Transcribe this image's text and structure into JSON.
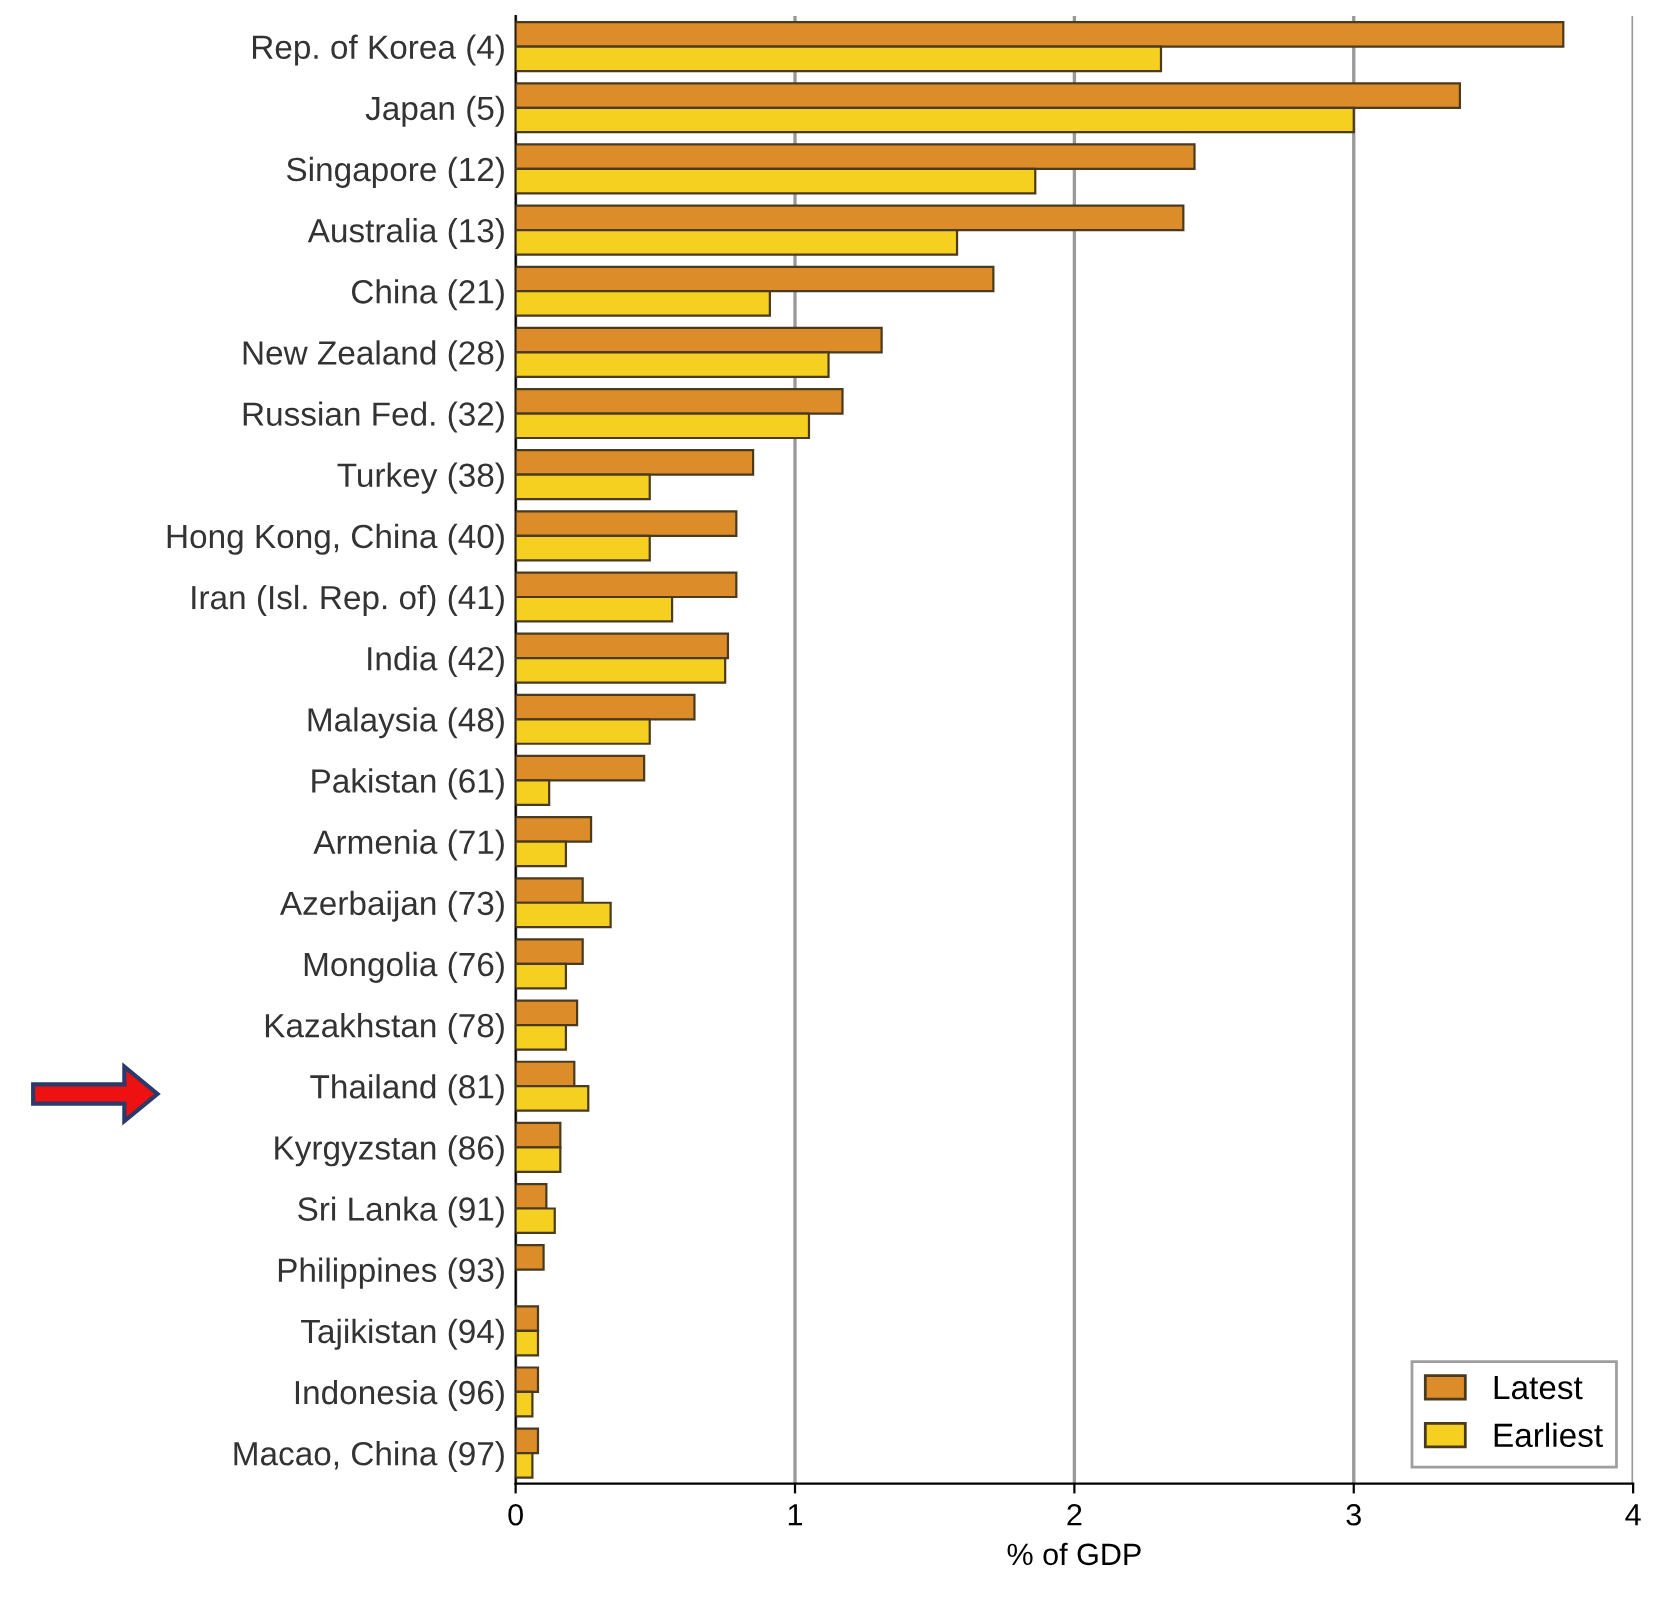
{
  "chart_data": {
    "type": "bar",
    "orientation": "horizontal",
    "xlabel": "% of GDP",
    "categories": [
      "Rep. of Korea (4)",
      "Japan (5)",
      "Singapore (12)",
      "Australia (13)",
      "China (21)",
      "New Zealand (28)",
      "Russian Fed. (32)",
      "Turkey (38)",
      "Hong Kong, China (40)",
      "Iran (Isl. Rep. of) (41)",
      "India (42)",
      "Malaysia (48)",
      "Pakistan (61)",
      "Armenia (71)",
      "Azerbaijan (73)",
      "Mongolia (76)",
      "Kazakhstan (78)",
      "Thailand (81)",
      "Kyrgyzstan (86)",
      "Sri Lanka (91)",
      "Philippines (93)",
      "Tajikistan (94)",
      "Indonesia (96)",
      "Macao, China (97)"
    ],
    "series": [
      {
        "name": "Latest",
        "color": "#dc8c28",
        "values": [
          3.75,
          3.38,
          2.43,
          2.39,
          1.71,
          1.31,
          1.17,
          0.85,
          0.79,
          0.79,
          0.76,
          0.64,
          0.46,
          0.27,
          0.24,
          0.24,
          0.22,
          0.21,
          0.16,
          0.11,
          0.1,
          0.08,
          0.08,
          0.08
        ]
      },
      {
        "name": "Earliest",
        "color": "#f5d020",
        "values": [
          2.31,
          3.0,
          1.86,
          1.58,
          0.91,
          1.12,
          1.05,
          0.48,
          0.48,
          0.56,
          0.75,
          0.48,
          0.12,
          0.18,
          0.34,
          0.18,
          0.18,
          0.26,
          0.16,
          0.14,
          null,
          0.08,
          0.06,
          0.06
        ]
      }
    ],
    "xlim": [
      0,
      4
    ],
    "xticks": [
      0,
      1,
      2,
      3,
      4
    ],
    "grid": "x",
    "legend": "bottom right"
  }
}
